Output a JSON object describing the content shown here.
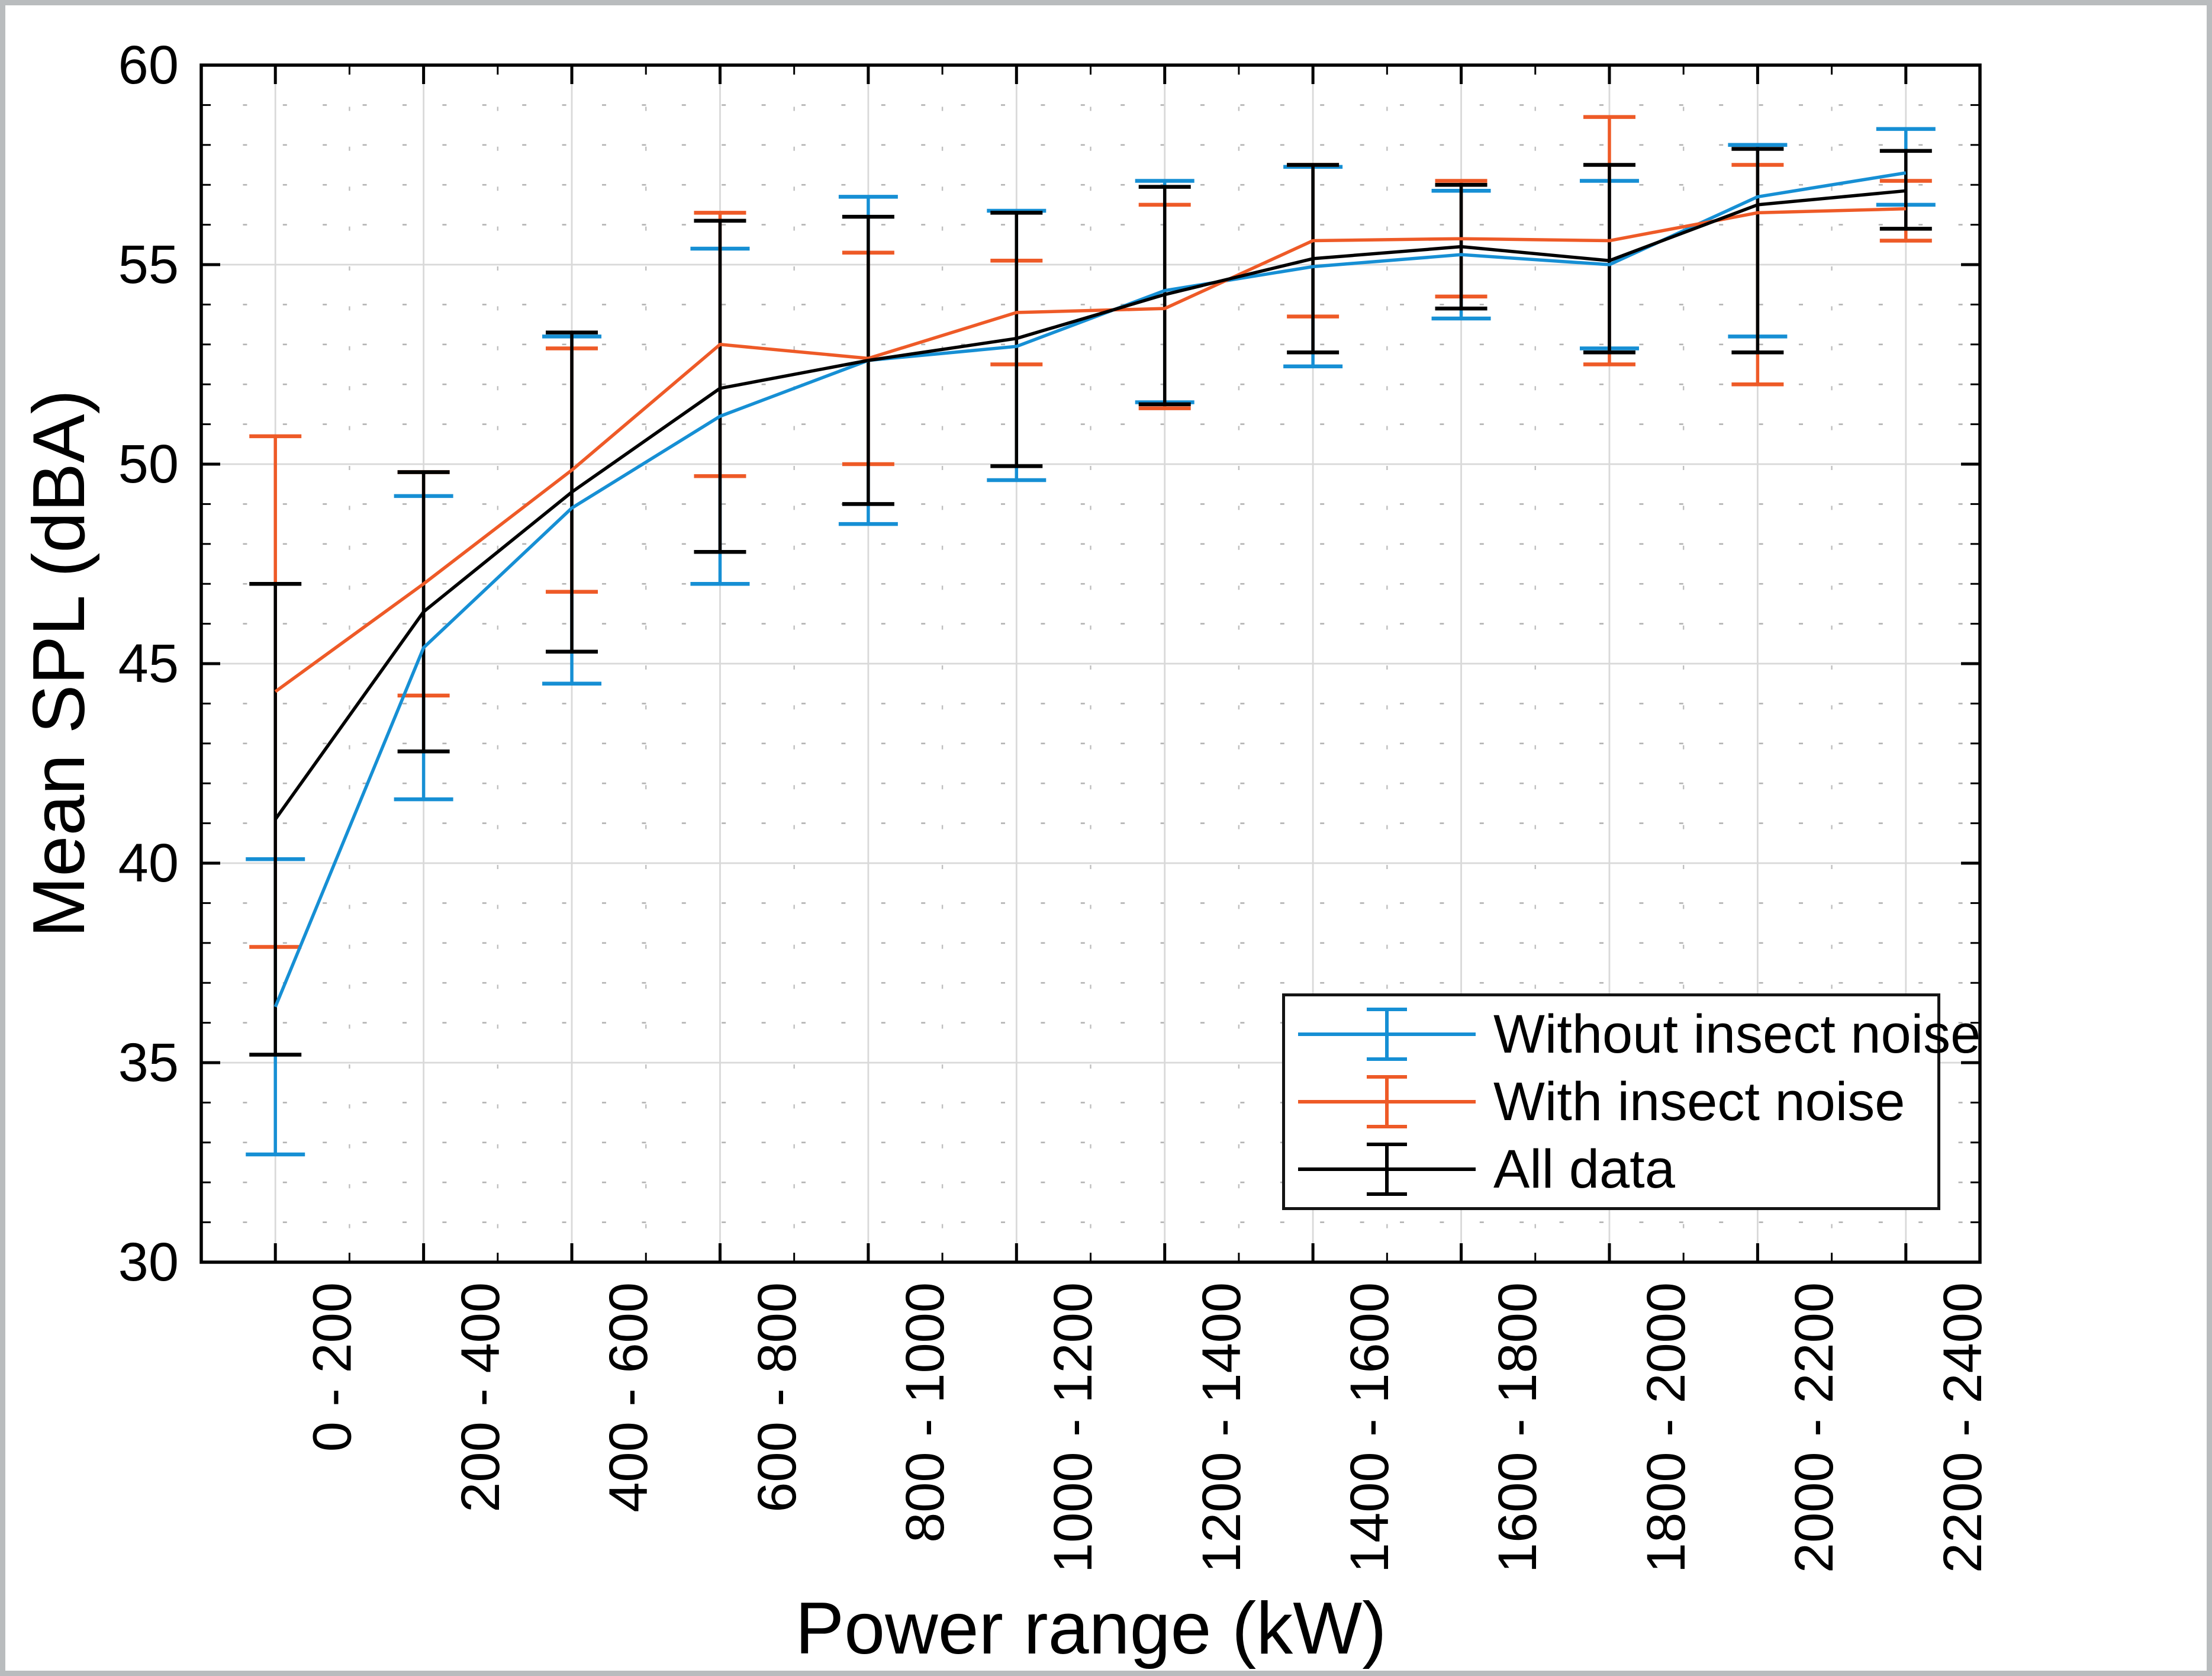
{
  "figure": {
    "background": "#ffffff",
    "frame_color": "#b9bcbe",
    "grid_major_color": "#d9d9d9",
    "grid_minor_color": "#b3b3b3",
    "axis_color": "#000000"
  },
  "chart_data": {
    "type": "line",
    "title": "",
    "xlabel": "Power range (kW)",
    "ylabel": "Mean SPL (dBA)",
    "ylim": [
      30,
      60
    ],
    "yticks": [
      30,
      35,
      40,
      45,
      50,
      55,
      60
    ],
    "grid": "major solid + minor dotted, box on",
    "legend_position": "inside lower right",
    "error_bars": "symmetric caps except slight asymmetry at 2000-2200",
    "categories": [
      "0 - 200",
      "200 - 400",
      "400 - 600",
      "600 - 800",
      "800 - 1000",
      "1000 - 1200",
      "1200 - 1400",
      "1400 - 1600",
      "1600 - 1800",
      "1800 - 2000",
      "2000 - 2200",
      "2200 - 2400"
    ],
    "series": [
      {
        "name": "Without insect noise",
        "color": "#168fd4",
        "cap_halfwidth": 50,
        "means": [
          36.4,
          45.4,
          48.9,
          51.2,
          52.6,
          52.95,
          54.35,
          54.95,
          55.25,
          55.0,
          56.7,
          57.3
        ],
        "lower": [
          32.7,
          41.6,
          44.5,
          47.0,
          48.5,
          49.6,
          51.55,
          52.45,
          53.65,
          52.9,
          53.2,
          56.5
        ],
        "upper": [
          40.1,
          49.2,
          53.2,
          55.4,
          56.7,
          56.35,
          57.1,
          57.45,
          56.85,
          57.1,
          58.0,
          58.4
        ]
      },
      {
        "name": "With insect noise",
        "color": "#ee5a27",
        "cap_halfwidth": 44,
        "means": [
          44.3,
          47.0,
          49.85,
          53.0,
          52.65,
          53.8,
          53.9,
          55.6,
          55.65,
          55.6,
          56.3,
          56.4
        ],
        "lower": [
          37.9,
          44.2,
          46.8,
          49.7,
          50.0,
          52.5,
          51.4,
          53.7,
          54.2,
          52.5,
          52.0,
          55.6
        ],
        "upper": [
          50.7,
          49.8,
          52.9,
          56.3,
          55.3,
          55.1,
          56.5,
          57.5,
          57.1,
          58.7,
          57.5,
          57.1
        ]
      },
      {
        "name": "All data",
        "color": "#000000",
        "cap_halfwidth": 44,
        "means": [
          41.1,
          46.3,
          49.3,
          51.9,
          52.6,
          53.15,
          54.25,
          55.15,
          55.45,
          55.1,
          56.5,
          56.85
        ],
        "lower": [
          35.2,
          42.8,
          45.3,
          47.8,
          49.0,
          49.95,
          51.5,
          52.8,
          53.9,
          52.8,
          52.8,
          55.9
        ],
        "upper": [
          47.0,
          49.8,
          53.3,
          56.1,
          56.2,
          56.3,
          56.95,
          57.5,
          57.0,
          57.5,
          57.9,
          57.85
        ]
      }
    ]
  }
}
